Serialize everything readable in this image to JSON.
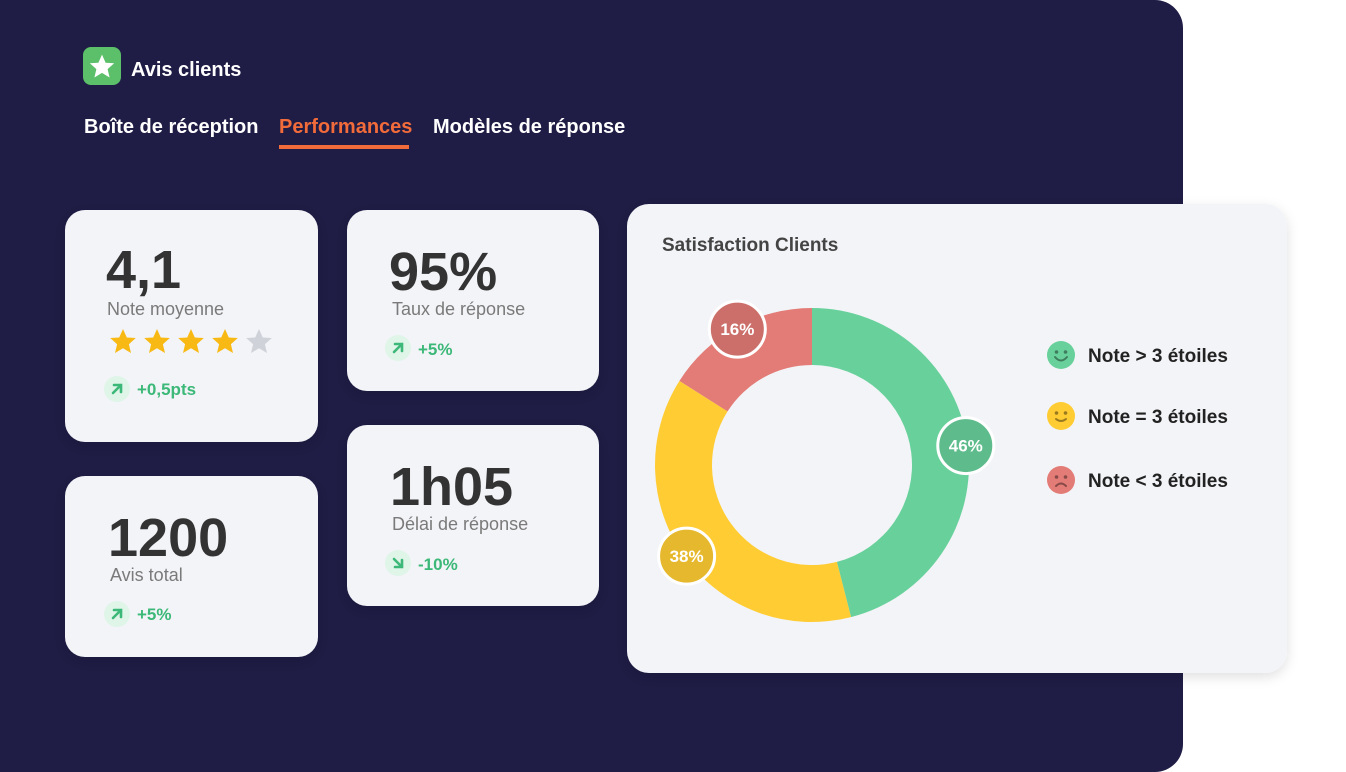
{
  "header": {
    "title": "Avis clients"
  },
  "tabs": [
    "Boîte de réception",
    "Performances",
    "Modèles de réponse"
  ],
  "kpis": [
    {
      "value": "4,1",
      "label": "Note moyenne",
      "change": "+0,5pts"
    },
    {
      "value": "95%",
      "label": "Taux de réponse",
      "change": "+5%"
    },
    {
      "value": "1200",
      "label": "Avis total",
      "change": "+5%"
    },
    {
      "value": "1h05",
      "label": "Délai de réponse",
      "change": "-10%"
    }
  ],
  "chart_data": {
    "type": "pie",
    "donut": true,
    "title": "Satisfaction Clients",
    "categories": [
      "Note > 3 étoiles",
      "Note = 3 étoiles",
      "Note < 3 étoiles"
    ],
    "values": [
      46,
      38,
      16
    ],
    "value_labels": [
      "46%",
      "38%",
      "16%"
    ],
    "colors": [
      "#68d19b",
      "#ffcc33",
      "#e37b76"
    ],
    "legend": "right"
  }
}
